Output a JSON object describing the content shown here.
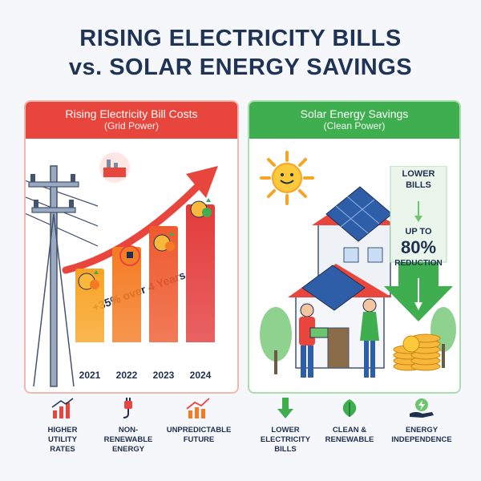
{
  "title_line1": "RISING ELECTRICITY BILLS",
  "title_line2": "vs. SOLAR ENERGY SAVINGS",
  "left_panel": {
    "heading": "Rising Electricity Bill Costs",
    "subheading": "(Grid Power)",
    "growth_label": "+35% over 4 Years",
    "chart": {
      "years": [
        "2021",
        "2022",
        "2023",
        "2024"
      ],
      "relative_cost": [
        1.0,
        1.12,
        1.23,
        1.35
      ],
      "colors": [
        "#f8a425",
        "#f47b23",
        "#ee5a2e",
        "#e33b3b"
      ]
    }
  },
  "right_panel": {
    "heading": "Solar Energy Savings",
    "subheading": "(Clean Power)",
    "lower_label": "LOWER",
    "bills_label": "BILLS",
    "upto_label": "UP TO",
    "pct_label": "80%",
    "reduction_label": "REDUCTION"
  },
  "bottom_left": [
    {
      "icon": "rising-bar-chart-icon",
      "label_l1": "HIGHER",
      "label_l2": "UTILITY",
      "label_l3": "RATES"
    },
    {
      "icon": "plug-icon",
      "label_l1": "NON-",
      "label_l2": "RENEWABLE",
      "label_l3": "ENERGY"
    },
    {
      "icon": "trend-chart-icon",
      "label_l1": "UNPREDICTABLE",
      "label_l2": "FUTURE",
      "label_l3": ""
    }
  ],
  "bottom_right": [
    {
      "icon": "down-arrow-icon",
      "label_l1": "LOWER",
      "label_l2": "ELECTRICITY",
      "label_l3": "BILLS"
    },
    {
      "icon": "leaf-icon",
      "label_l1": "CLEAN &",
      "label_l2": "RENEWABLE",
      "label_l3": ""
    },
    {
      "icon": "energy-hand-icon",
      "label_l1": "ENERGY",
      "label_l2": "INDEPENDENCE",
      "label_l3": ""
    }
  ]
}
